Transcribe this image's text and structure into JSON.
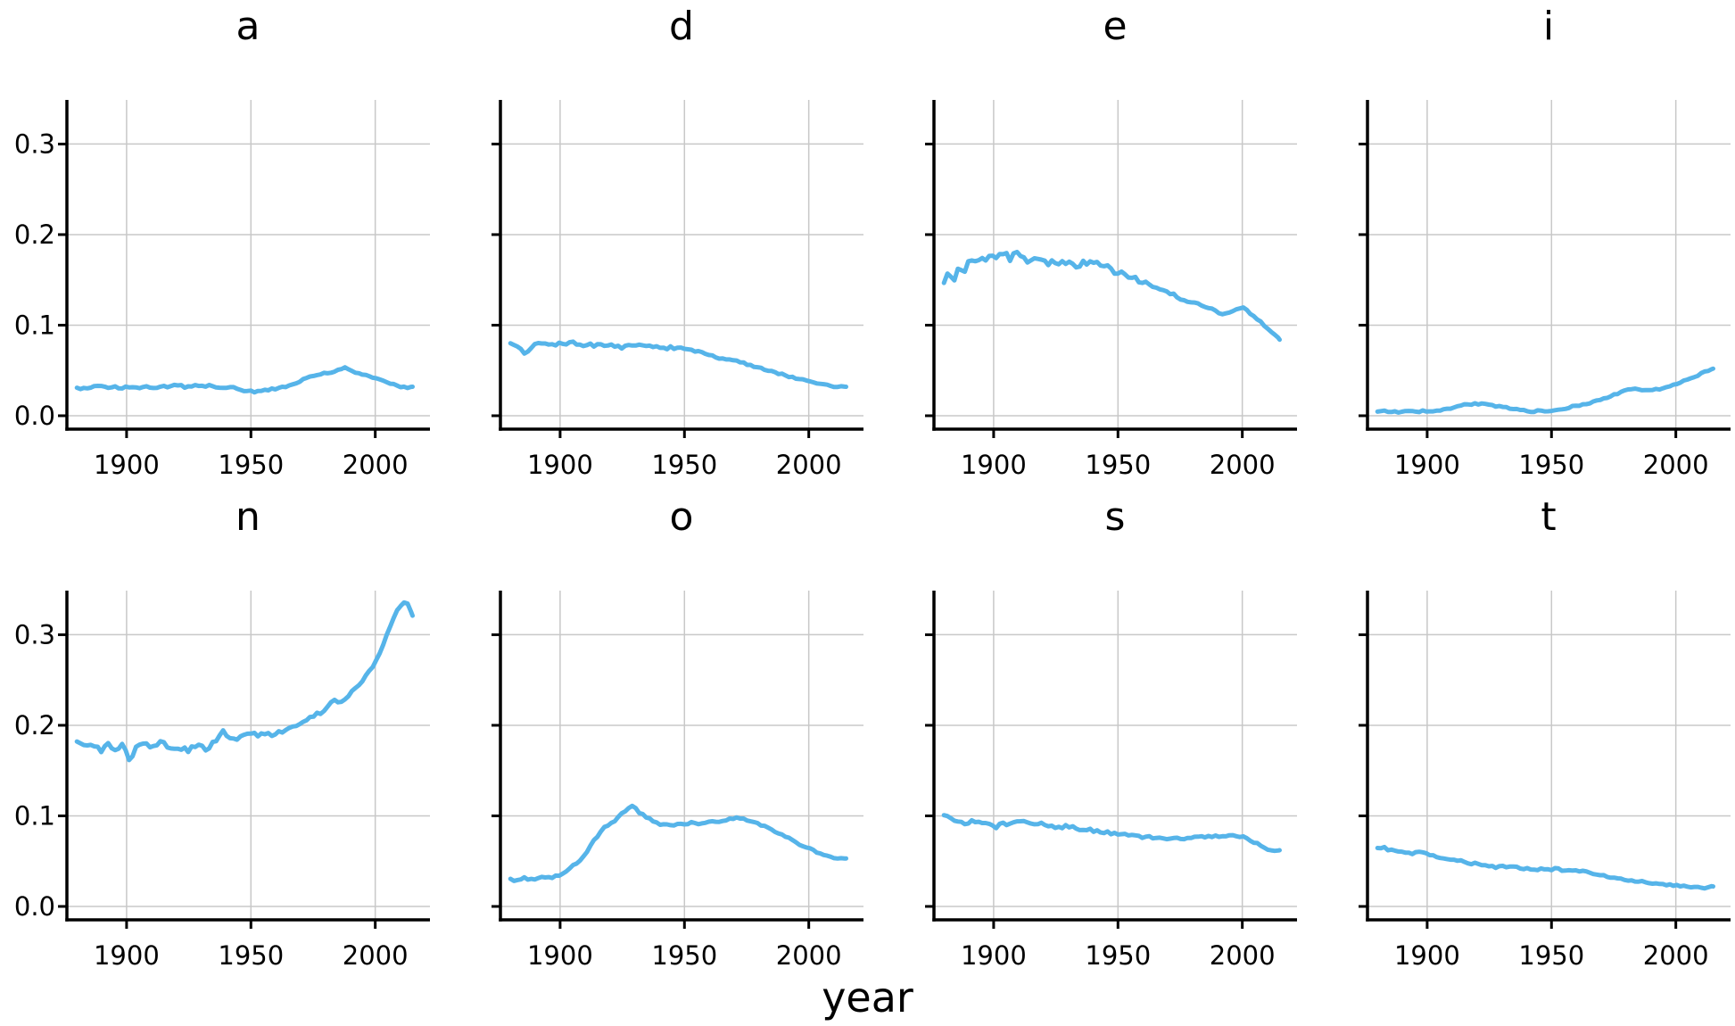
{
  "figure": {
    "xlabel": "year",
    "background": "#ffffff",
    "line_color": "#56B4E9",
    "grid_color": "#c8c8c8",
    "axis_color": "#000000",
    "text_color": "#000000"
  },
  "axes": {
    "x_ticks": [
      1900,
      1950,
      2000
    ],
    "y_ticks": [
      0.0,
      0.1,
      0.2,
      0.3
    ],
    "xlim": [
      1876,
      2022
    ],
    "ylim": [
      -0.0148,
      0.3487
    ],
    "grid": true,
    "legend": "none"
  },
  "chart_data": [
    {
      "type": "line",
      "title": "a",
      "x": [
        1880,
        1884,
        1888,
        1892,
        1896,
        1900,
        1904,
        1908,
        1912,
        1916,
        1920,
        1924,
        1928,
        1932,
        1936,
        1940,
        1944,
        1948,
        1952,
        1956,
        1960,
        1964,
        1968,
        1972,
        1976,
        1980,
        1984,
        1988,
        1990,
        1994,
        1998,
        2002,
        2006,
        2010,
        2013,
        2015
      ],
      "y": [
        0.03,
        0.031,
        0.032,
        0.031,
        0.031,
        0.032,
        0.031,
        0.032,
        0.032,
        0.032,
        0.033,
        0.032,
        0.033,
        0.033,
        0.032,
        0.031,
        0.03,
        0.028,
        0.027,
        0.028,
        0.03,
        0.032,
        0.036,
        0.041,
        0.045,
        0.047,
        0.049,
        0.053,
        0.05,
        0.046,
        0.043,
        0.04,
        0.036,
        0.032,
        0.031,
        0.032
      ],
      "noise": [
        0.0015,
        0.0008
      ]
    },
    {
      "type": "line",
      "title": "d",
      "x": [
        1880,
        1883,
        1886,
        1889,
        1892,
        1896,
        1900,
        1905,
        1910,
        1915,
        1920,
        1925,
        1930,
        1935,
        1940,
        1945,
        1950,
        1955,
        1960,
        1965,
        1968,
        1972,
        1976,
        1980,
        1985,
        1990,
        1995,
        2000,
        2005,
        2010,
        2015
      ],
      "y": [
        0.079,
        0.075,
        0.067,
        0.078,
        0.08,
        0.079,
        0.079,
        0.08,
        0.078,
        0.078,
        0.077,
        0.076,
        0.077,
        0.077,
        0.076,
        0.075,
        0.074,
        0.071,
        0.067,
        0.063,
        0.062,
        0.06,
        0.056,
        0.053,
        0.049,
        0.045,
        0.041,
        0.038,
        0.035,
        0.032,
        0.032
      ],
      "noise": [
        0.002,
        0.0008
      ]
    },
    {
      "type": "line",
      "title": "e",
      "x": [
        1880,
        1882,
        1884,
        1886,
        1888,
        1890,
        1893,
        1896,
        1900,
        1903,
        1906,
        1910,
        1913,
        1916,
        1920,
        1925,
        1928,
        1932,
        1936,
        1940,
        1944,
        1948,
        1952,
        1956,
        1960,
        1964,
        1968,
        1972,
        1976,
        1980,
        1984,
        1988,
        1992,
        1996,
        2000,
        2003,
        2006,
        2009,
        2012,
        2015
      ],
      "y": [
        0.15,
        0.162,
        0.148,
        0.17,
        0.156,
        0.172,
        0.175,
        0.172,
        0.176,
        0.18,
        0.174,
        0.178,
        0.17,
        0.172,
        0.17,
        0.168,
        0.171,
        0.166,
        0.17,
        0.168,
        0.164,
        0.16,
        0.157,
        0.152,
        0.148,
        0.143,
        0.139,
        0.134,
        0.128,
        0.125,
        0.121,
        0.117,
        0.113,
        0.115,
        0.12,
        0.113,
        0.107,
        0.1,
        0.091,
        0.084
      ],
      "noise": [
        0.004,
        0.0015
      ]
    },
    {
      "type": "line",
      "title": "i",
      "x": [
        1880,
        1885,
        1890,
        1895,
        1900,
        1905,
        1910,
        1915,
        1920,
        1925,
        1930,
        1935,
        1940,
        1945,
        1950,
        1955,
        1960,
        1965,
        1970,
        1975,
        1980,
        1983,
        1986,
        1990,
        1994,
        1998,
        2002,
        2006,
        2010,
        2013,
        2015
      ],
      "y": [
        0.005,
        0.005,
        0.004,
        0.005,
        0.005,
        0.006,
        0.009,
        0.012,
        0.013,
        0.012,
        0.01,
        0.007,
        0.005,
        0.005,
        0.006,
        0.008,
        0.011,
        0.014,
        0.018,
        0.023,
        0.028,
        0.03,
        0.029,
        0.028,
        0.03,
        0.033,
        0.037,
        0.041,
        0.046,
        0.05,
        0.052
      ],
      "noise": [
        0.001,
        0.0008
      ]
    },
    {
      "type": "line",
      "title": "n",
      "x": [
        1880,
        1883,
        1886,
        1889,
        1892,
        1895,
        1898,
        1901,
        1904,
        1907,
        1910,
        1913,
        1916,
        1920,
        1924,
        1928,
        1932,
        1936,
        1939,
        1942,
        1945,
        1948,
        1952,
        1956,
        1960,
        1964,
        1968,
        1972,
        1976,
        1980,
        1983,
        1986,
        1989,
        1992,
        1995,
        1998,
        2001,
        2004,
        2007,
        2009,
        2011,
        2013,
        2014,
        2015
      ],
      "y": [
        0.18,
        0.176,
        0.181,
        0.172,
        0.178,
        0.174,
        0.18,
        0.163,
        0.176,
        0.18,
        0.174,
        0.183,
        0.177,
        0.175,
        0.172,
        0.176,
        0.175,
        0.18,
        0.193,
        0.184,
        0.184,
        0.187,
        0.189,
        0.189,
        0.191,
        0.194,
        0.199,
        0.205,
        0.212,
        0.216,
        0.229,
        0.224,
        0.233,
        0.241,
        0.25,
        0.261,
        0.275,
        0.295,
        0.314,
        0.33,
        0.335,
        0.333,
        0.326,
        0.321
      ],
      "noise": [
        0.0035,
        0.0015
      ]
    },
    {
      "type": "line",
      "title": "o",
      "x": [
        1880,
        1883,
        1886,
        1889,
        1892,
        1895,
        1898,
        1901,
        1904,
        1907,
        1910,
        1913,
        1916,
        1919,
        1922,
        1925,
        1927,
        1929,
        1931,
        1933,
        1936,
        1939,
        1942,
        1945,
        1948,
        1952,
        1956,
        1960,
        1964,
        1968,
        1971,
        1974,
        1977,
        1980,
        1984,
        1988,
        1992,
        1996,
        2000,
        2004,
        2008,
        2012,
        2015
      ],
      "y": [
        0.03,
        0.029,
        0.031,
        0.03,
        0.032,
        0.031,
        0.033,
        0.037,
        0.043,
        0.049,
        0.058,
        0.07,
        0.081,
        0.09,
        0.095,
        0.102,
        0.107,
        0.111,
        0.106,
        0.102,
        0.097,
        0.092,
        0.09,
        0.09,
        0.091,
        0.092,
        0.092,
        0.093,
        0.094,
        0.096,
        0.098,
        0.097,
        0.094,
        0.091,
        0.086,
        0.081,
        0.075,
        0.069,
        0.064,
        0.059,
        0.055,
        0.052,
        0.053
      ],
      "noise": [
        0.0015,
        0.001
      ]
    },
    {
      "type": "line",
      "title": "s",
      "x": [
        1880,
        1883,
        1886,
        1889,
        1892,
        1895,
        1898,
        1901,
        1904,
        1907,
        1910,
        1913,
        1916,
        1920,
        1924,
        1928,
        1932,
        1936,
        1940,
        1944,
        1948,
        1952,
        1956,
        1960,
        1964,
        1968,
        1972,
        1976,
        1980,
        1984,
        1988,
        1992,
        1996,
        2000,
        2003,
        2006,
        2009,
        2012,
        2015
      ],
      "y": [
        0.1,
        0.098,
        0.094,
        0.092,
        0.095,
        0.09,
        0.093,
        0.088,
        0.092,
        0.09,
        0.093,
        0.094,
        0.091,
        0.09,
        0.089,
        0.088,
        0.087,
        0.085,
        0.084,
        0.082,
        0.081,
        0.08,
        0.078,
        0.077,
        0.076,
        0.075,
        0.075,
        0.075,
        0.076,
        0.077,
        0.077,
        0.078,
        0.078,
        0.077,
        0.073,
        0.069,
        0.065,
        0.061,
        0.062
      ],
      "noise": [
        0.0022,
        0.001
      ]
    },
    {
      "type": "line",
      "title": "t",
      "x": [
        1880,
        1882,
        1884,
        1886,
        1888,
        1890,
        1893,
        1896,
        1900,
        1904,
        1908,
        1912,
        1916,
        1920,
        1924,
        1928,
        1932,
        1936,
        1940,
        1944,
        1948,
        1952,
        1956,
        1960,
        1964,
        1968,
        1972,
        1976,
        1980,
        1984,
        1988,
        1992,
        1996,
        2000,
        2004,
        2008,
        2012,
        2015
      ],
      "y": [
        0.063,
        0.066,
        0.062,
        0.064,
        0.061,
        0.062,
        0.059,
        0.06,
        0.057,
        0.055,
        0.053,
        0.051,
        0.048,
        0.047,
        0.045,
        0.044,
        0.043,
        0.043,
        0.042,
        0.041,
        0.041,
        0.041,
        0.04,
        0.04,
        0.038,
        0.036,
        0.033,
        0.031,
        0.029,
        0.028,
        0.027,
        0.025,
        0.024,
        0.023,
        0.022,
        0.021,
        0.02,
        0.022
      ],
      "noise": [
        0.0016,
        0.0008
      ]
    }
  ]
}
